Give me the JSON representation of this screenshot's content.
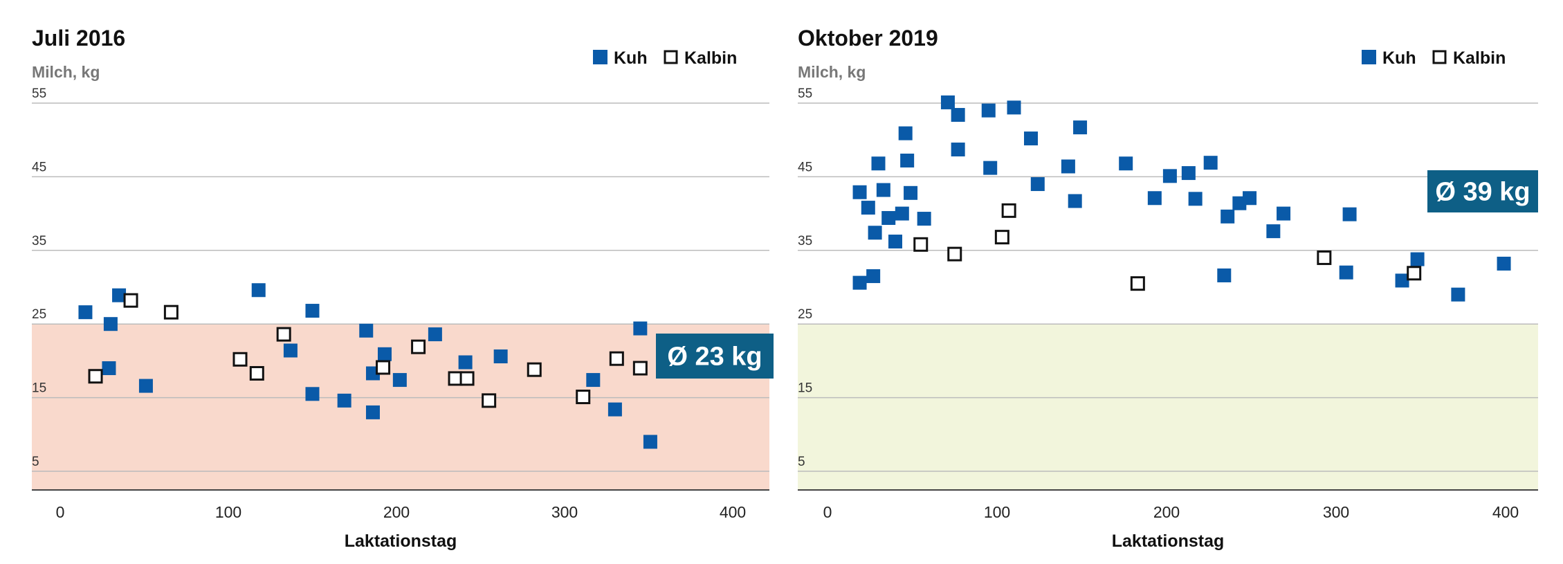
{
  "colors": {
    "kuh": "#0a5aa8",
    "kalbin_stroke": "#111111",
    "avg_box": "#0e5f86",
    "grid": "#bbbbbb"
  },
  "chart_data": [
    {
      "type": "scatter",
      "title": "Juli 2016",
      "ylabel": "Milch, kg",
      "xlabel": "Laktationstag",
      "xlim": [
        0,
        420
      ],
      "ylim": [
        2.5,
        55
      ],
      "xticks": [
        0,
        100,
        200,
        300,
        400
      ],
      "yticks": [
        5,
        15,
        25,
        35,
        45,
        55
      ],
      "grid": true,
      "legend": {
        "placement": "top-right",
        "entries": [
          "Kuh",
          "Kalbin"
        ]
      },
      "band": {
        "from": 2.5,
        "to": 25,
        "color": "#f9d9cc"
      },
      "average_label": "Ø 23 kg",
      "series": [
        {
          "name": "Kuh",
          "points": [
            [
              15,
              26.6
            ],
            [
              35,
              28.9
            ],
            [
              30,
              25
            ],
            [
              29,
              19
            ],
            [
              51,
              16.6
            ],
            [
              118,
              29.6
            ],
            [
              137,
              21.4
            ],
            [
              150,
              26.8
            ],
            [
              150,
              15.5
            ],
            [
              169,
              14.6
            ],
            [
              182,
              24.1
            ],
            [
              186,
              18.3
            ],
            [
              186,
              13
            ],
            [
              193,
              20.9
            ],
            [
              202,
              17.4
            ],
            [
              223,
              23.6
            ],
            [
              241,
              19.8
            ],
            [
              262,
              20.6
            ],
            [
              317,
              17.4
            ],
            [
              330,
              13.4
            ],
            [
              345,
              24.4
            ],
            [
              351,
              9
            ]
          ]
        },
        {
          "name": "Kalbin",
          "points": [
            [
              21,
              17.9
            ],
            [
              42,
              28.2
            ],
            [
              66,
              26.6
            ],
            [
              107,
              20.2
            ],
            [
              117,
              18.3
            ],
            [
              133,
              23.6
            ],
            [
              192,
              19.1
            ],
            [
              213,
              21.9
            ],
            [
              235,
              17.6
            ],
            [
              242,
              17.6
            ],
            [
              255,
              14.6
            ],
            [
              282,
              18.8
            ],
            [
              311,
              15.1
            ],
            [
              331,
              20.3
            ],
            [
              345,
              19
            ]
          ]
        }
      ]
    },
    {
      "type": "scatter",
      "title": "Oktober 2019",
      "ylabel": "Milch, kg",
      "xlabel": "Laktationstag",
      "xlim": [
        0,
        420
      ],
      "ylim": [
        2.5,
        55
      ],
      "xticks": [
        0,
        100,
        200,
        300,
        400
      ],
      "yticks": [
        5,
        15,
        25,
        35,
        45,
        55
      ],
      "grid": true,
      "legend": {
        "placement": "top-right",
        "entries": [
          "Kuh",
          "Kalbin"
        ]
      },
      "band": {
        "from": 2.5,
        "to": 25,
        "color": "#f2f5dc"
      },
      "average_label": "Ø 39 kg",
      "series": [
        {
          "name": "Kuh",
          "points": [
            [
              19,
              30.6
            ],
            [
              27,
              31.5
            ],
            [
              19,
              42.9
            ],
            [
              24,
              40.8
            ],
            [
              30,
              46.8
            ],
            [
              33,
              43.2
            ],
            [
              28,
              37.4
            ],
            [
              36,
              39.4
            ],
            [
              44,
              40
            ],
            [
              40,
              36.2
            ],
            [
              46,
              50.9
            ],
            [
              47,
              47.2
            ],
            [
              49,
              42.8
            ],
            [
              57,
              39.3
            ],
            [
              71,
              55.1
            ],
            [
              77,
              53.4
            ],
            [
              77,
              48.7
            ],
            [
              95,
              54
            ],
            [
              96,
              46.2
            ],
            [
              110,
              54.4
            ],
            [
              120,
              50.2
            ],
            [
              124,
              44
            ],
            [
              142,
              46.4
            ],
            [
              149,
              51.7
            ],
            [
              146,
              41.7
            ],
            [
              176,
              46.8
            ],
            [
              193,
              42.1
            ],
            [
              202,
              45.1
            ],
            [
              213,
              45.5
            ],
            [
              217,
              42
            ],
            [
              226,
              46.9
            ],
            [
              234,
              31.6
            ],
            [
              236,
              39.6
            ],
            [
              243,
              41.4
            ],
            [
              249,
              42.1
            ],
            [
              269,
              40
            ],
            [
              263,
              37.6
            ],
            [
              308,
              39.9
            ],
            [
              306,
              32
            ],
            [
              339,
              30.9
            ],
            [
              348,
              33.8
            ],
            [
              372,
              29
            ],
            [
              399,
              33.2
            ]
          ]
        },
        {
          "name": "Kalbin",
          "points": [
            [
              55,
              35.8
            ],
            [
              75,
              34.5
            ],
            [
              103,
              36.8
            ],
            [
              107,
              40.4
            ],
            [
              183,
              30.5
            ],
            [
              293,
              34
            ],
            [
              346,
              31.9
            ]
          ]
        }
      ]
    }
  ]
}
